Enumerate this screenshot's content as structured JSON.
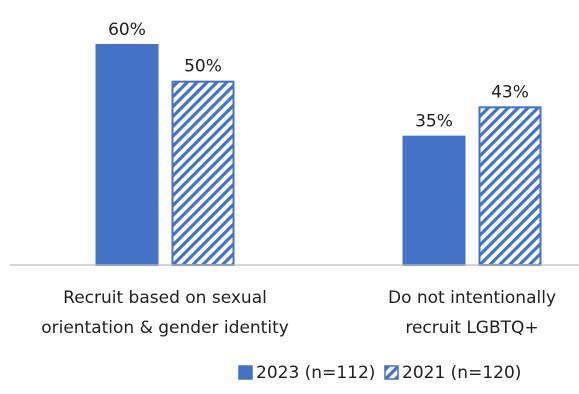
{
  "chart_data": {
    "type": "bar",
    "categories": [
      [
        "Recruit based on sexual",
        "orientation & gender identity"
      ],
      [
        "Do not intentionally",
        "recruit LGBTQ+"
      ]
    ],
    "series": [
      {
        "name": "2023 (n=112)",
        "values": [
          60,
          35
        ],
        "labels": [
          "60%",
          "35%"
        ],
        "fill": "solid",
        "color": "#4472C4"
      },
      {
        "name": "2021 (n=120)",
        "values": [
          50,
          43
        ],
        "labels": [
          "50%",
          "43%"
        ],
        "fill": "hatched",
        "color": "#4472C4"
      }
    ],
    "ylim": [
      0,
      60
    ],
    "grid": false,
    "legend_position": "bottom-right",
    "title": "",
    "xlabel": "",
    "ylabel": ""
  },
  "colors": {
    "accent": "#4472C4",
    "axis": "#BFBFBF",
    "text": "#1F1F1F"
  }
}
